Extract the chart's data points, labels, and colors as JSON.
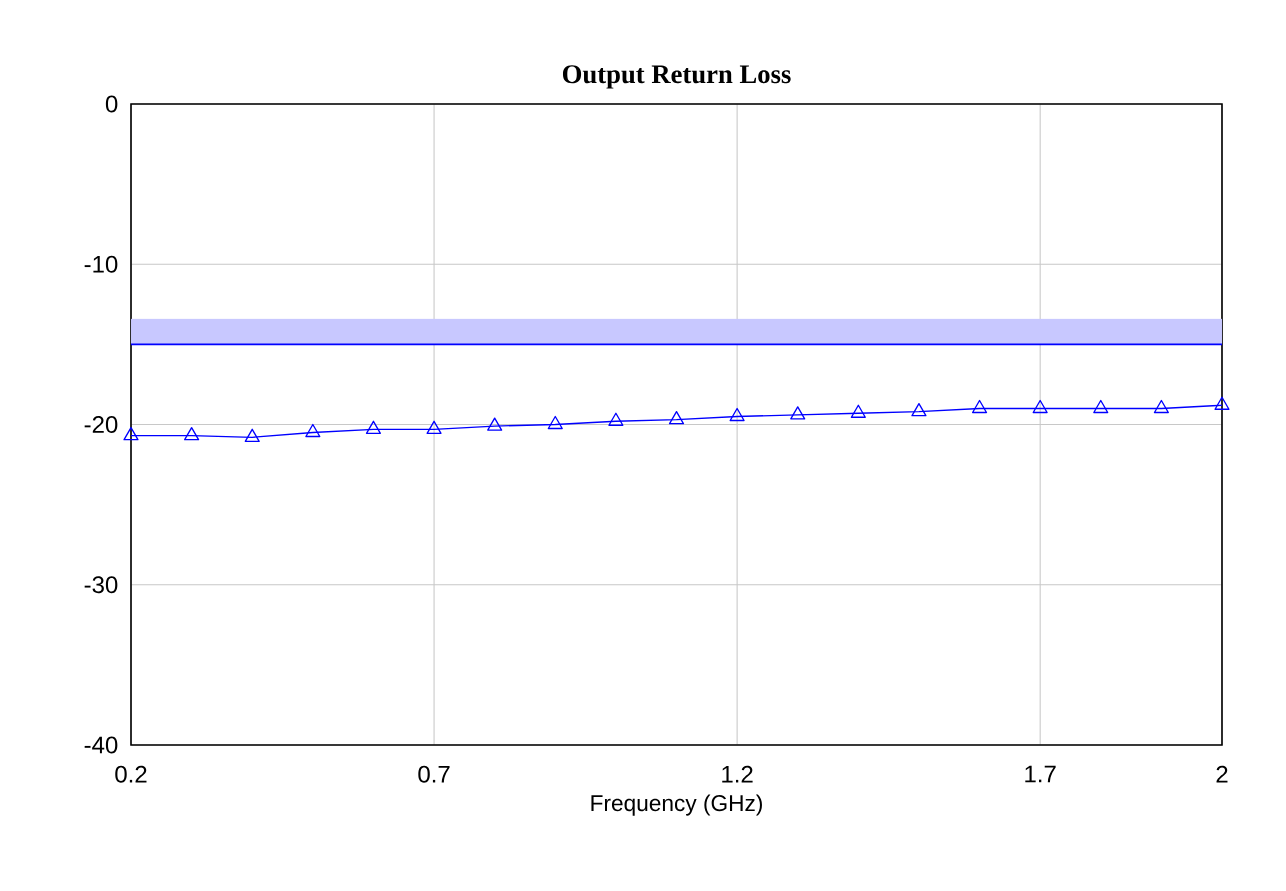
{
  "chart_data": {
    "type": "line",
    "title": "Output Return Loss",
    "xlabel": "Frequency (GHz)",
    "x": [
      0.2,
      0.3,
      0.4,
      0.5,
      0.6,
      0.7,
      0.8,
      0.9,
      1.0,
      1.1,
      1.2,
      1.3,
      1.4,
      1.5,
      1.6,
      1.7,
      1.8,
      1.9,
      2.0
    ],
    "series": [
      {
        "color": "#0000ff",
        "values": [
          -20.7,
          -20.7,
          -20.8,
          -20.5,
          -20.3,
          -20.3,
          -20.1,
          -20.0,
          -19.8,
          -19.7,
          -19.5,
          -19.4,
          -19.3,
          -19.2,
          -19.0,
          -19.0,
          -19.0,
          -19.0,
          -18.8
        ]
      }
    ],
    "bands": [
      {
        "axis": "y",
        "from": -15,
        "to": -13.4,
        "color": "#c8c8ff"
      }
    ],
    "ref_lines": [
      {
        "axis": "y",
        "value": -15,
        "color": "#0000ff"
      }
    ],
    "xlim": [
      0.2,
      2
    ],
    "xticks": [
      0.2,
      0.7,
      1.2,
      1.7,
      2
    ],
    "ylim": [
      -40,
      0
    ],
    "yticks": [
      -40,
      -30,
      -20,
      -10,
      0
    ],
    "grid": true,
    "marker": "triangle",
    "line_style": "solid"
  }
}
